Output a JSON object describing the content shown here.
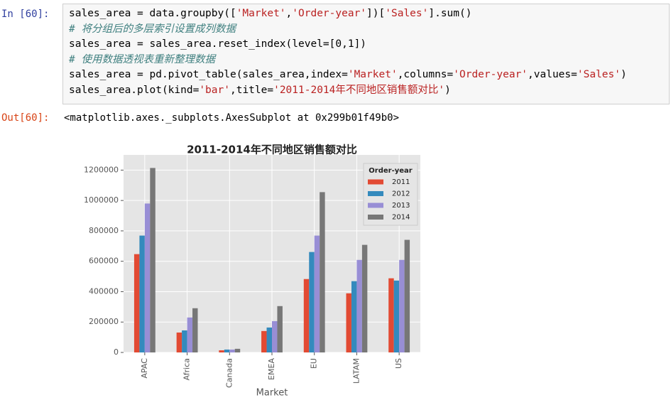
{
  "cell": {
    "in_prompt": "In  [60]:",
    "lines": [
      [
        "sales_area = data.groupby([",
        {
          "text": "'Market'",
          "color": "#ba2121"
        },
        ",",
        {
          "text": "'Order-year'",
          "color": "#ba2121"
        },
        "])[",
        {
          "text": "'Sales'",
          "color": "#ba2121"
        },
        "].sum()"
      ],
      [
        {
          "text": "# 将分组后的多层索引设置成列数据",
          "color": "#408080"
        }
      ],
      [
        "sales_area = sales_area.reset_index(level=[0,1])"
      ],
      [
        {
          "text": "# 使用数据透视表重新整理数据",
          "color": "#408080"
        }
      ],
      [
        "sales_area = pd.pivot_table(sales_area,index=",
        {
          "text": "'Market'",
          "color": "#ba2121"
        },
        ",columns=",
        {
          "text": "'Order-year'",
          "color": "#ba2121"
        },
        ",values=",
        {
          "text": "'Sales'",
          "color": "#ba2121"
        },
        ")"
      ],
      [
        "sales_area.plot(kind=",
        {
          "text": "'bar'",
          "color": "#ba2121"
        },
        ",title=",
        {
          "text": "'2011-2014年不同地区销售额对比'",
          "color": "#ba2121"
        },
        ")"
      ]
    ]
  },
  "output": {
    "prompt": "Out[60]:",
    "text": "<matplotlib.axes._subplots.AxesSubplot at 0x299b01f49b0>"
  },
  "chart_data": {
    "type": "bar",
    "title": "2011-2014年不同地区销售额对比",
    "x_label": "Market",
    "categories": [
      "APAC",
      "Africa",
      "Canada",
      "EMEA",
      "EU",
      "LATAM",
      "US"
    ],
    "legend_title": "Order-year",
    "legend": "upper right",
    "grid": true,
    "series": [
      {
        "name": "2011",
        "color": "#e24a33",
        "values": [
          647000,
          131000,
          14000,
          141000,
          483000,
          389000,
          488000
        ]
      },
      {
        "name": "2012",
        "color": "#348abd",
        "values": [
          769000,
          145000,
          19000,
          164000,
          661000,
          469000,
          473000
        ]
      },
      {
        "name": "2013",
        "color": "#988ed5",
        "values": [
          980000,
          230000,
          19000,
          206000,
          769000,
          609000,
          609000
        ]
      },
      {
        "name": "2014",
        "color": "#777777",
        "values": [
          1214000,
          291000,
          24000,
          305000,
          1055000,
          708000,
          741000
        ]
      }
    ],
    "ylim": [
      0,
      1300000
    ],
    "yticks": [
      0,
      200000,
      400000,
      600000,
      800000,
      1000000,
      1200000
    ]
  }
}
